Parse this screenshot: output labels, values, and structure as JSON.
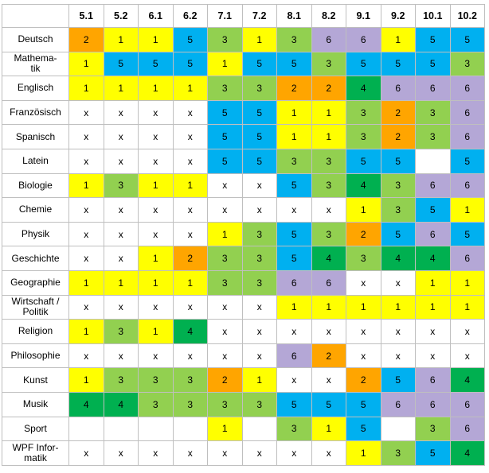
{
  "colors": {
    "1": "#ffff00",
    "2": "#ffa500",
    "3": "#92d050",
    "4": "#00b050",
    "5": "#00b0f0",
    "6": "#b4a7d6",
    "x": "#ffffff",
    "": "#ffffff"
  },
  "columns": [
    "5.1",
    "5.2",
    "6.1",
    "6.2",
    "7.1",
    "7.2",
    "8.1",
    "8.2",
    "9.1",
    "9.2",
    "10.1",
    "10.2"
  ],
  "rows": [
    {
      "subject": "Deutsch",
      "values": [
        "2",
        "1",
        "1",
        "5",
        "3",
        "1",
        "3",
        "6",
        "6",
        "1",
        "5",
        "5"
      ]
    },
    {
      "subject": "Mathema-\ntik",
      "values": [
        "1",
        "5",
        "5",
        "5",
        "1",
        "5",
        "5",
        "3",
        "5",
        "5",
        "5",
        "3"
      ]
    },
    {
      "subject": "Englisch",
      "values": [
        "1",
        "1",
        "1",
        "1",
        "3",
        "3",
        "2",
        "2",
        "4",
        "6",
        "6",
        "6"
      ]
    },
    {
      "subject": "Französisch",
      "values": [
        "x",
        "x",
        "x",
        "x",
        "5",
        "5",
        "1",
        "1",
        "3",
        "2",
        "3",
        "6"
      ]
    },
    {
      "subject": "Spanisch",
      "values": [
        "x",
        "x",
        "x",
        "x",
        "5",
        "5",
        "1",
        "1",
        "3",
        "2",
        "3",
        "6"
      ]
    },
    {
      "subject": "Latein",
      "values": [
        "x",
        "x",
        "x",
        "x",
        "5",
        "5",
        "3",
        "3",
        "5",
        "5",
        "",
        "5"
      ]
    },
    {
      "subject": "Biologie",
      "values": [
        "1",
        "3",
        "1",
        "1",
        "x",
        "x",
        "5",
        "3",
        "4",
        "3",
        "6",
        "6"
      ]
    },
    {
      "subject": "Chemie",
      "values": [
        "x",
        "x",
        "x",
        "x",
        "x",
        "x",
        "x",
        "x",
        "1",
        "3",
        "5",
        "1"
      ]
    },
    {
      "subject": "Physik",
      "values": [
        "x",
        "x",
        "x",
        "x",
        "1",
        "3",
        "5",
        "3",
        "2",
        "5",
        "6",
        "5"
      ]
    },
    {
      "subject": "Geschichte",
      "values": [
        "x",
        "x",
        "1",
        "2",
        "3",
        "3",
        "5",
        "4",
        "3",
        "4",
        "4",
        "6"
      ]
    },
    {
      "subject": "Geographie",
      "values": [
        "1",
        "1",
        "1",
        "1",
        "3",
        "3",
        "6",
        "6",
        "x",
        "x",
        "1",
        "1"
      ]
    },
    {
      "subject": "Wirtschaft /\nPolitik",
      "values": [
        "x",
        "x",
        "x",
        "x",
        "x",
        "x",
        "1",
        "1",
        "1",
        "1",
        "1",
        "1"
      ]
    },
    {
      "subject": "Religion",
      "values": [
        "1",
        "3",
        "1",
        "4",
        "x",
        "x",
        "x",
        "x",
        "x",
        "x",
        "x",
        "x"
      ]
    },
    {
      "subject": "Philosophie",
      "values": [
        "x",
        "x",
        "x",
        "x",
        "x",
        "x",
        "6",
        "2",
        "x",
        "x",
        "x",
        "x"
      ]
    },
    {
      "subject": "Kunst",
      "values": [
        "1",
        "3",
        "3",
        "3",
        "2",
        "1",
        "x",
        "x",
        "2",
        "5",
        "6",
        "4"
      ]
    },
    {
      "subject": "Musik",
      "values": [
        "4",
        "4",
        "3",
        "3",
        "3",
        "3",
        "5",
        "5",
        "5",
        "6",
        "6",
        "6"
      ]
    },
    {
      "subject": "Sport",
      "values": [
        "",
        "",
        "",
        "",
        "1",
        "",
        "3",
        "1",
        "5",
        "",
        "3",
        "6"
      ]
    },
    {
      "subject": "WPF Infor-\nmatik",
      "values": [
        "x",
        "x",
        "x",
        "x",
        "x",
        "x",
        "x",
        "x",
        "1",
        "3",
        "5",
        "4"
      ]
    }
  ]
}
